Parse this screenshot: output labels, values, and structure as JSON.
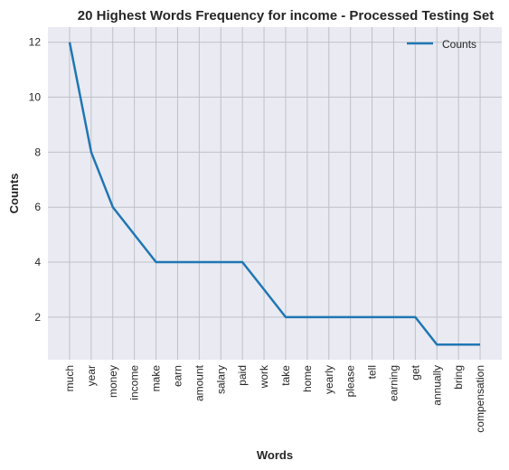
{
  "chart_data": {
    "type": "line",
    "title": "20 Highest Words Frequency for income - Processed Testing Set",
    "xlabel": "Words",
    "ylabel": "Counts",
    "categories": [
      "much",
      "year",
      "money",
      "income",
      "make",
      "earn",
      "amount",
      "salary",
      "paid",
      "work",
      "take",
      "home",
      "yearly",
      "please",
      "tell",
      "earning",
      "get",
      "annually",
      "bring",
      "compensation"
    ],
    "series": [
      {
        "name": "Counts",
        "values": [
          12,
          8,
          6,
          5,
          4,
          4,
          4,
          4,
          4,
          3,
          2,
          2,
          2,
          2,
          2,
          2,
          2,
          1,
          1,
          1
        ]
      }
    ],
    "ylim": [
      0.45,
      12.55
    ],
    "yticks": [
      2,
      4,
      6,
      8,
      10,
      12
    ],
    "grid": true,
    "legend": "top-right",
    "colors": {
      "line": "#1f77b4",
      "background": "#eaeaf2",
      "grid": "#c0c0c8"
    }
  }
}
